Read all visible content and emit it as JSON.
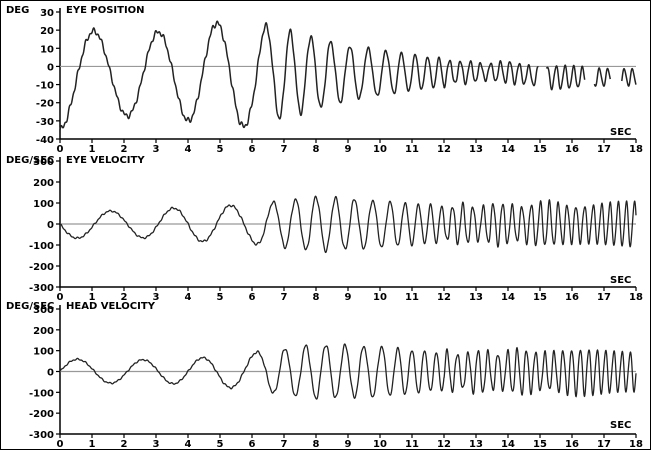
{
  "chart_data": [
    {
      "type": "line",
      "title": "EYE POSITION",
      "ylabel": "DEG",
      "xlabel": "SEC",
      "xlim": [
        0,
        18
      ],
      "ylim": [
        -40,
        30
      ],
      "y_ticks": [
        30,
        20,
        10,
        0,
        -10,
        -20,
        -30,
        -40
      ],
      "x_ticks": [
        0,
        1,
        2,
        3,
        4,
        5,
        6,
        7,
        8,
        9,
        10,
        11,
        12,
        13,
        14,
        15,
        16,
        17,
        18
      ],
      "reference_line": 0,
      "series": [
        {
          "envelope": [
            [
              0,
              30
            ],
            [
              1.5,
              22
            ],
            [
              3.5,
              24
            ],
            [
              5.5,
              30
            ],
            [
              7,
              24
            ],
            [
              9,
              15
            ],
            [
              11,
              10
            ],
            [
              13,
              5
            ],
            [
              15,
              6
            ],
            [
              18,
              5
            ]
          ],
          "frequency": [
            [
              0,
              0.45
            ],
            [
              6,
              0.6
            ],
            [
              7,
              1.5
            ],
            [
              10,
              1.8
            ],
            [
              12,
              3.0
            ],
            [
              18,
              4.0
            ]
          ],
          "offset": [
            [
              0,
              -5
            ],
            [
              14,
              -3
            ],
            [
              15,
              -6
            ],
            [
              18,
              -6
            ]
          ],
          "samples": [
            [
              0,
              -12
            ],
            [
              0.3,
              -31
            ],
            [
              0.6,
              -27
            ],
            [
              1.4,
              21
            ],
            [
              2.5,
              -20
            ],
            [
              3.5,
              25
            ],
            [
              4.6,
              -25
            ],
            [
              5.6,
              29
            ],
            [
              6.3,
              -10
            ],
            [
              7.0,
              26
            ],
            [
              8.0,
              20
            ],
            [
              9.0,
              17
            ],
            [
              10.0,
              14
            ],
            [
              11.0,
              12
            ],
            [
              12.0,
              5
            ],
            [
              14.0,
              0
            ],
            [
              15.0,
              -5
            ],
            [
              17.8,
              -8
            ]
          ]
        }
      ]
    },
    {
      "type": "line",
      "title": "EYE VELOCITY",
      "ylabel": "DEG/SEC",
      "xlabel": "SEC",
      "xlim": [
        0,
        18
      ],
      "ylim": [
        -300,
        300
      ],
      "y_ticks": [
        300,
        200,
        100,
        0,
        -100,
        -200,
        -300
      ],
      "x_ticks": [
        0,
        1,
        2,
        3,
        4,
        5,
        6,
        7,
        8,
        9,
        10,
        11,
        12,
        13,
        14,
        15,
        16,
        17,
        18
      ],
      "reference_line": 0,
      "series": [
        {
          "envelope": [
            [
              0,
              70
            ],
            [
              2,
              60
            ],
            [
              4,
              80
            ],
            [
              5.5,
              90
            ],
            [
              6.5,
              100
            ],
            [
              8,
              130
            ],
            [
              10,
              110
            ],
            [
              12,
              85
            ],
            [
              15,
              95
            ],
            [
              18,
              100
            ]
          ],
          "frequency": [
            [
              0,
              0.45
            ],
            [
              6,
              0.6
            ],
            [
              7,
              1.5
            ],
            [
              10,
              1.8
            ],
            [
              12,
              3.0
            ],
            [
              18,
              4.0
            ]
          ],
          "offset": [
            [
              0,
              0
            ],
            [
              18,
              0
            ]
          ],
          "samples": [
            [
              0.5,
              70
            ],
            [
              2,
              -60
            ],
            [
              2.8,
              70
            ],
            [
              4,
              -70
            ],
            [
              4.9,
              70
            ],
            [
              5.8,
              -90
            ],
            [
              8.2,
              140
            ],
            [
              11,
              120
            ],
            [
              13,
              80
            ],
            [
              15,
              90
            ],
            [
              17.5,
              100
            ]
          ]
        }
      ]
    },
    {
      "type": "line",
      "title": "HEAD VELOCITY",
      "ylabel": "DEG/SEC",
      "xlabel": "SEC",
      "xlim": [
        0,
        18
      ],
      "ylim": [
        -300,
        300
      ],
      "y_ticks": [
        300,
        200,
        100,
        0,
        -100,
        -200,
        -300
      ],
      "x_ticks": [
        0,
        1,
        2,
        3,
        4,
        5,
        6,
        7,
        8,
        9,
        10,
        11,
        12,
        13,
        14,
        15,
        16,
        17,
        18
      ],
      "reference_line": 0,
      "series": [
        {
          "envelope": [
            [
              0,
              60
            ],
            [
              2,
              55
            ],
            [
              4,
              60
            ],
            [
              5.5,
              80
            ],
            [
              6.5,
              100
            ],
            [
              8,
              130
            ],
            [
              10,
              120
            ],
            [
              12,
              90
            ],
            [
              15,
              100
            ],
            [
              18,
              100
            ]
          ],
          "frequency": [
            [
              0,
              0.45
            ],
            [
              6,
              0.6
            ],
            [
              7,
              1.5
            ],
            [
              10,
              1.8
            ],
            [
              12,
              3.0
            ],
            [
              18,
              4.0
            ]
          ],
          "offset": [
            [
              0,
              0
            ],
            [
              18,
              0
            ]
          ],
          "samples": [
            [
              0.5,
              -60
            ],
            [
              1.8,
              60
            ],
            [
              3,
              -55
            ],
            [
              4.4,
              60
            ],
            [
              5.4,
              -70
            ],
            [
              8.4,
              130
            ],
            [
              11,
              -120
            ],
            [
              13,
              90
            ],
            [
              15,
              100
            ],
            [
              17.8,
              100
            ]
          ]
        }
      ]
    }
  ]
}
